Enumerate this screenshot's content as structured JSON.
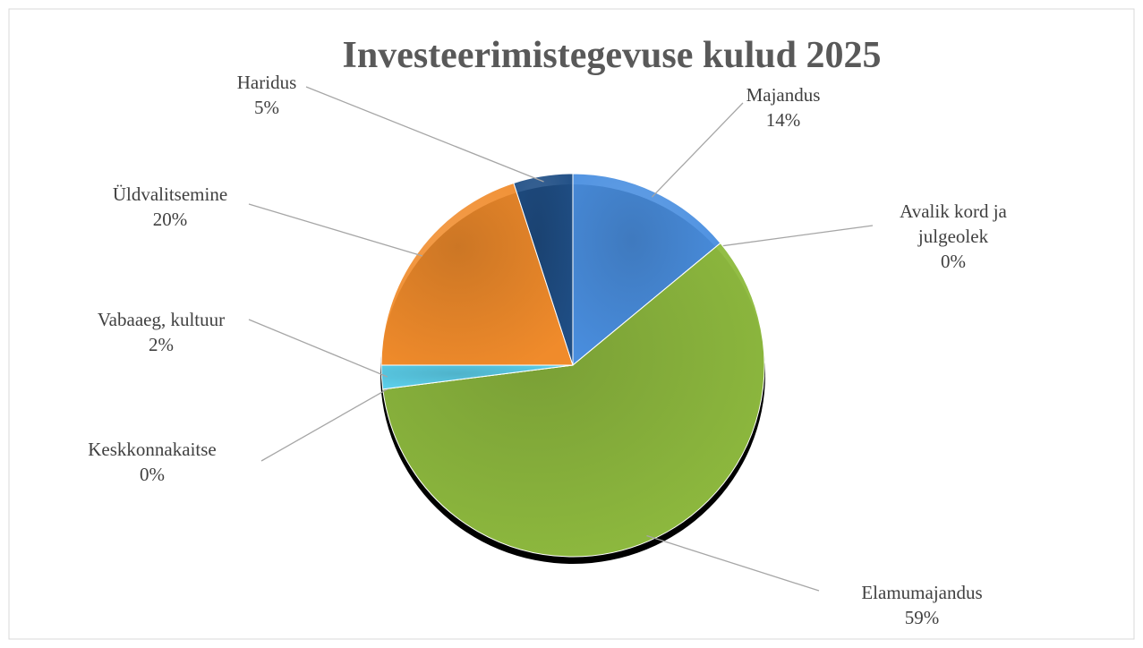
{
  "chart_data": {
    "type": "pie",
    "title": "Investeerimistegevuse kulud 2025",
    "categories": [
      "Majandus",
      "Avalik kord ja julgeolek",
      "Elamumajandus",
      "Keskkonnakaitse",
      "Vabaaeg, kultuur",
      "Üldvalitsemine",
      "Haridus"
    ],
    "values": [
      14,
      0,
      59,
      0,
      2,
      20,
      5
    ],
    "value_labels": [
      "14%",
      "0%",
      "59%",
      "0%",
      "2%",
      "20%",
      "5%"
    ],
    "colors": [
      "#4a8fe0",
      "#c0504d",
      "#8fbb3f",
      "#7f7f7f",
      "#5dd2ee",
      "#f08b2b",
      "#1f4e85"
    ]
  }
}
